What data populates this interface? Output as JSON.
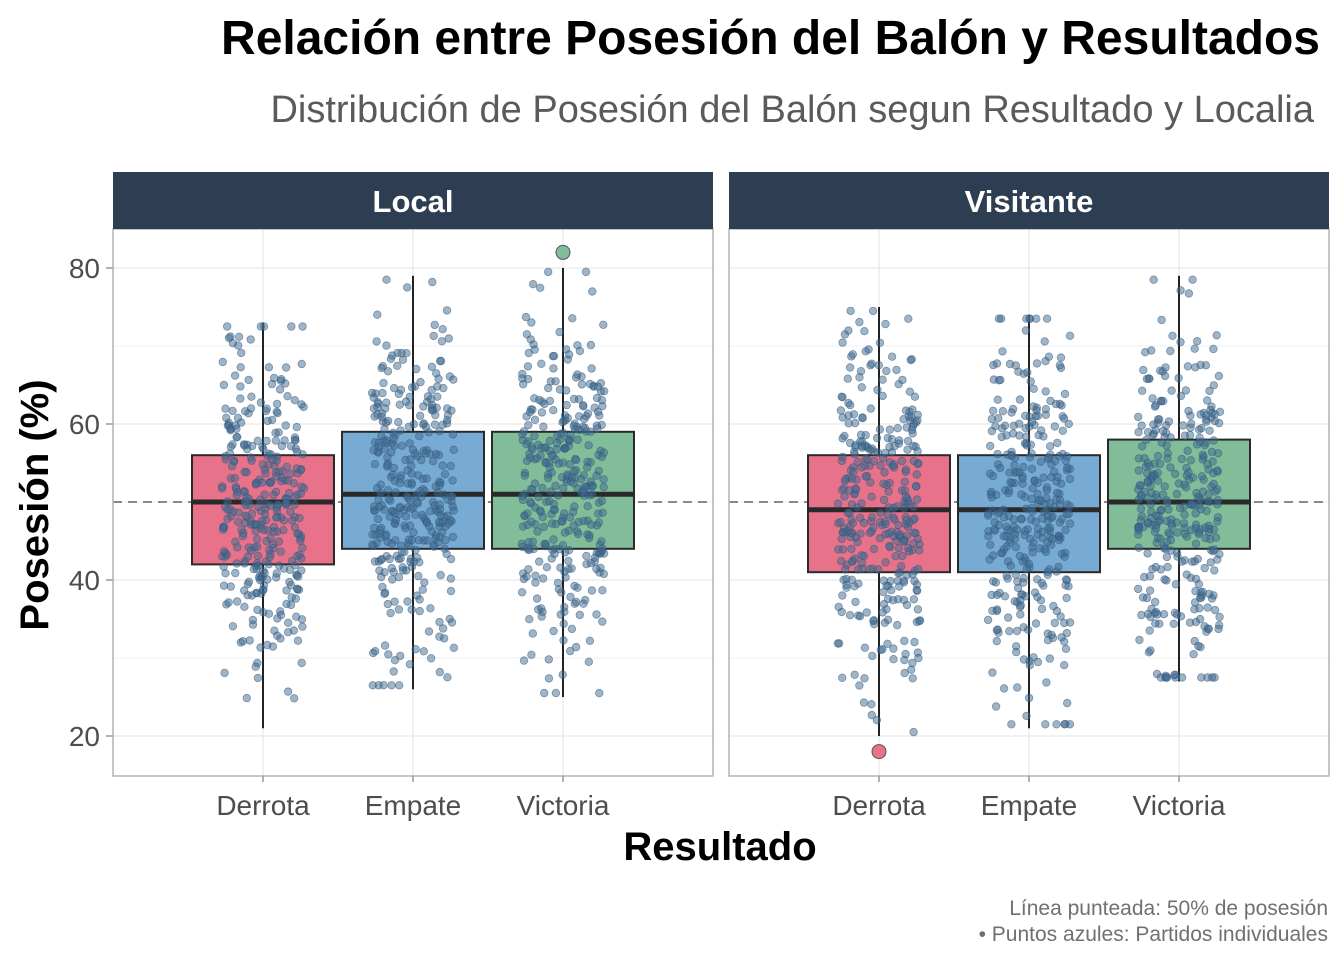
{
  "chart_data": {
    "type": "boxplot",
    "title": "Relación entre Posesión del Balón y Resultados",
    "subtitle": "Distribución de Posesión del Balón segun Resultado y Localia",
    "xlabel": "Resultado",
    "ylabel": "Posesión (%)",
    "ylim": [
      15,
      85
    ],
    "yticks": [
      20,
      40,
      60,
      80
    ],
    "reference_line": 50,
    "categories": [
      "Derrota",
      "Empate",
      "Victoria"
    ],
    "colors": {
      "Derrota": "#E8728A",
      "Empate": "#78ABD4",
      "Victoria": "#80BD98"
    },
    "point_color": "#3E6A90",
    "strip_color": "#2E3E52",
    "grid": true,
    "panels": [
      {
        "name": "Local",
        "boxes": [
          {
            "category": "Derrota",
            "q1": 42,
            "median": 50,
            "q3": 56,
            "whisker_low": 21,
            "whisker_high": 73,
            "outliers": []
          },
          {
            "category": "Empate",
            "q1": 44,
            "median": 51,
            "q3": 59,
            "whisker_low": 26,
            "whisker_high": 79,
            "outliers": []
          },
          {
            "category": "Victoria",
            "q1": 44,
            "median": 51,
            "q3": 59,
            "whisker_low": 25,
            "whisker_high": 80,
            "outliers": [
              82
            ]
          }
        ]
      },
      {
        "name": "Visitante",
        "boxes": [
          {
            "category": "Derrota",
            "q1": 41,
            "median": 49,
            "q3": 56,
            "whisker_low": 20,
            "whisker_high": 75,
            "outliers": [
              18
            ]
          },
          {
            "category": "Empate",
            "q1": 41,
            "median": 49,
            "q3": 56,
            "whisker_low": 21,
            "whisker_high": 74,
            "outliers": []
          },
          {
            "category": "Victoria",
            "q1": 44,
            "median": 50,
            "q3": 58,
            "whisker_low": 27,
            "whisker_high": 79,
            "outliers": []
          }
        ]
      }
    ],
    "caption": [
      "Línea punteada: 50% de posesión",
      "• Puntos azules: Partidos individuales"
    ]
  }
}
